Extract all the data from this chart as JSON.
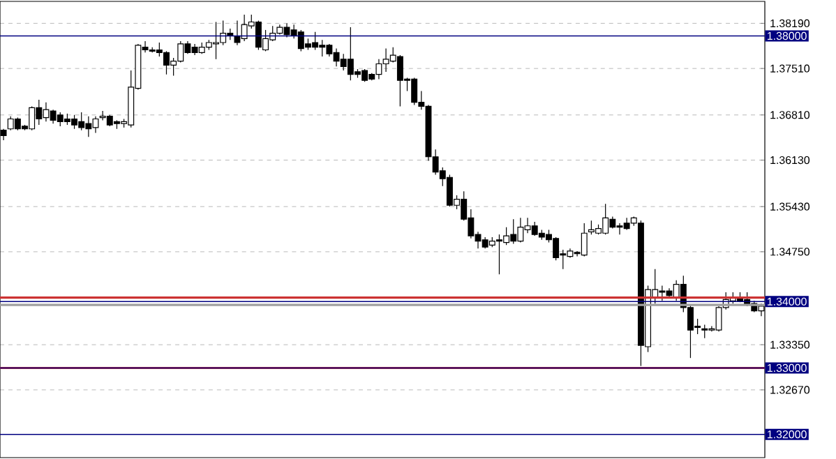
{
  "chart_data": {
    "type": "candlestick",
    "color": "#000000",
    "categories": [
      null,
      null,
      null,
      null,
      null,
      null,
      null,
      null,
      null,
      null,
      null,
      null,
      null,
      null,
      null,
      null,
      null,
      null,
      null,
      null,
      null,
      null,
      null,
      null,
      null,
      null,
      null,
      null,
      null,
      null,
      null,
      null,
      null,
      null,
      null,
      null,
      null,
      null,
      null,
      null,
      null,
      null,
      null,
      null,
      null,
      null,
      null,
      null,
      null,
      null,
      null,
      null,
      null,
      null,
      null,
      null,
      null,
      null,
      null,
      null,
      null,
      null,
      null,
      null,
      null,
      null,
      null,
      null,
      null,
      null,
      null,
      null,
      null,
      null,
      null,
      null,
      null,
      null,
      null,
      null,
      null,
      null,
      null,
      null,
      null,
      null,
      null,
      null,
      null,
      null,
      null,
      null,
      null,
      null,
      null,
      null,
      null,
      null,
      null,
      null,
      null,
      null,
      null,
      null,
      null,
      null,
      null,
      null
    ],
    "ohlc": [
      [
        1.3658,
        1.366,
        1.3643,
        1.365
      ],
      [
        1.366,
        1.3679,
        1.3658,
        1.3675
      ],
      [
        1.3675,
        1.3677,
        1.3658,
        1.366
      ],
      [
        1.3664,
        1.3666,
        1.3658,
        1.366
      ],
      [
        1.366,
        1.3694,
        1.3658,
        1.3692
      ],
      [
        1.3692,
        1.3704,
        1.3666,
        1.3675
      ],
      [
        1.3677,
        1.37,
        1.3671,
        1.3689
      ],
      [
        1.3687,
        1.3689,
        1.3668,
        1.3673
      ],
      [
        1.3681,
        1.3685,
        1.3664,
        1.3671
      ],
      [
        1.3675,
        1.3683,
        1.3666,
        1.3671
      ],
      [
        1.3675,
        1.3681,
        1.366,
        1.3666
      ],
      [
        1.3671,
        1.3685,
        1.3658,
        1.3662
      ],
      [
        1.3668,
        1.3679,
        1.3648,
        1.366
      ],
      [
        1.3662,
        1.3679,
        1.3654,
        1.3675
      ],
      [
        1.3677,
        1.3687,
        1.3673,
        1.3679
      ],
      [
        1.3679,
        1.3681,
        1.3664,
        1.3666
      ],
      [
        1.3671,
        1.3673,
        1.366,
        1.3668
      ],
      [
        1.3668,
        1.3675,
        1.3662,
        1.3671
      ],
      [
        1.3666,
        1.3748,
        1.3662,
        1.3723
      ],
      [
        1.3721,
        1.3788,
        1.3719,
        1.3786
      ],
      [
        1.3783,
        1.3792,
        1.3775,
        1.3779
      ],
      [
        1.3779,
        1.3783,
        1.3775,
        1.3777
      ],
      [
        1.3779,
        1.379,
        1.3769,
        1.3775
      ],
      [
        1.3775,
        1.3777,
        1.3742,
        1.3756
      ],
      [
        1.3756,
        1.3767,
        1.374,
        1.3762
      ],
      [
        1.3762,
        1.3792,
        1.376,
        1.3788
      ],
      [
        1.3788,
        1.3792,
        1.3773,
        1.3775
      ],
      [
        1.3783,
        1.3788,
        1.3771,
        1.3775
      ],
      [
        1.3775,
        1.379,
        1.3773,
        1.3783
      ],
      [
        1.3783,
        1.3794,
        1.3779,
        1.379
      ],
      [
        1.3788,
        1.3821,
        1.3765,
        1.379
      ],
      [
        1.379,
        1.3823,
        1.3786,
        1.3804
      ],
      [
        1.3804,
        1.3811,
        1.3794,
        1.38
      ],
      [
        1.38,
        1.3823,
        1.3786,
        1.379
      ],
      [
        1.3796,
        1.3832,
        1.3792,
        1.3817
      ],
      [
        1.3815,
        1.3832,
        1.3811,
        1.3821
      ],
      [
        1.3821,
        1.3823,
        1.3779,
        1.3783
      ],
      [
        1.3779,
        1.3809,
        1.3777,
        1.3796
      ],
      [
        1.3794,
        1.3815,
        1.3792,
        1.3804
      ],
      [
        1.3804,
        1.3817,
        1.3802,
        1.3813
      ],
      [
        1.3813,
        1.3819,
        1.3798,
        1.3802
      ],
      [
        1.3809,
        1.3817,
        1.3796,
        1.38
      ],
      [
        1.3806,
        1.3809,
        1.3777,
        1.3781
      ],
      [
        1.3788,
        1.3796,
        1.3779,
        1.3783
      ],
      [
        1.379,
        1.3806,
        1.3779,
        1.3783
      ],
      [
        1.3786,
        1.3794,
        1.3769,
        1.3783
      ],
      [
        1.3786,
        1.3788,
        1.3769,
        1.3773
      ],
      [
        1.3775,
        1.3781,
        1.3754,
        1.3762
      ],
      [
        1.3765,
        1.3773,
        1.3748,
        1.3754
      ],
      [
        1.3765,
        1.3813,
        1.3733,
        1.3742
      ],
      [
        1.3746,
        1.375,
        1.3737,
        1.3742
      ],
      [
        1.3748,
        1.375,
        1.3731,
        1.3733
      ],
      [
        1.3742,
        1.3744,
        1.3733,
        1.3735
      ],
      [
        1.3742,
        1.3765,
        1.3735,
        1.3758
      ],
      [
        1.3758,
        1.3781,
        1.3746,
        1.3765
      ],
      [
        1.3762,
        1.3783,
        1.376,
        1.3771
      ],
      [
        1.3769,
        1.3771,
        1.3694,
        1.3733
      ],
      [
        1.3735,
        1.3737,
        1.3717,
        1.3733
      ],
      [
        1.3735,
        1.3737,
        1.3696,
        1.37
      ],
      [
        1.37,
        1.3717,
        1.3689,
        1.3694
      ],
      [
        1.3694,
        1.3696,
        1.3612,
        1.3618
      ],
      [
        1.3618,
        1.3629,
        1.3591,
        1.3595
      ],
      [
        1.3597,
        1.3602,
        1.3574,
        1.3585
      ],
      [
        1.3587,
        1.3591,
        1.3543,
        1.3545
      ],
      [
        1.3545,
        1.356,
        1.3539,
        1.3554
      ],
      [
        1.3554,
        1.3566,
        1.3522,
        1.3524
      ],
      [
        1.3526,
        1.3539,
        1.3495,
        1.3499
      ],
      [
        1.3501,
        1.3505,
        1.348,
        1.3491
      ],
      [
        1.3493,
        1.3497,
        1.348,
        1.3482
      ],
      [
        1.3485,
        1.3497,
        1.3482,
        1.3491
      ],
      [
        1.3493,
        1.3501,
        1.3441,
        1.3491
      ],
      [
        1.3489,
        1.3512,
        1.3485,
        1.3499
      ],
      [
        1.3501,
        1.3524,
        1.3487,
        1.3491
      ],
      [
        1.3491,
        1.3526,
        1.3489,
        1.3512
      ],
      [
        1.3508,
        1.3526,
        1.3503,
        1.3514
      ],
      [
        1.3514,
        1.352,
        1.3499,
        1.3501
      ],
      [
        1.3503,
        1.3508,
        1.3493,
        1.3497
      ],
      [
        1.3501,
        1.3508,
        1.3489,
        1.3493
      ],
      [
        1.3495,
        1.3497,
        1.3462,
        1.3466
      ],
      [
        1.3472,
        1.3478,
        1.3449,
        1.347
      ],
      [
        1.3468,
        1.348,
        1.3466,
        1.3476
      ],
      [
        1.3474,
        1.3476,
        1.3468,
        1.3472
      ],
      [
        1.347,
        1.3518,
        1.3468,
        1.3503
      ],
      [
        1.3505,
        1.3522,
        1.3501,
        1.3508
      ],
      [
        1.3503,
        1.3516,
        1.3501,
        1.351
      ],
      [
        1.3503,
        1.3547,
        1.3501,
        1.3526
      ],
      [
        1.3524,
        1.3528,
        1.351,
        1.3512
      ],
      [
        1.3514,
        1.3518,
        1.3501,
        1.3512
      ],
      [
        1.3518,
        1.3526,
        1.3508,
        1.351
      ],
      [
        1.3518,
        1.3528,
        1.3514,
        1.3526
      ],
      [
        1.3518,
        1.3522,
        1.3303,
        1.3334
      ],
      [
        1.3332,
        1.3424,
        1.3324,
        1.3418
      ],
      [
        1.3407,
        1.3449,
        1.3397,
        1.3418
      ],
      [
        1.3416,
        1.3424,
        1.3401,
        1.3414
      ],
      [
        1.3416,
        1.342,
        1.3405,
        1.3409
      ],
      [
        1.3407,
        1.3432,
        1.3401,
        1.3426
      ],
      [
        1.3426,
        1.3439,
        1.3384,
        1.3391
      ],
      [
        1.3391,
        1.3395,
        1.3315,
        1.3357
      ],
      [
        1.3363,
        1.3374,
        1.3351,
        1.3361
      ],
      [
        1.3359,
        1.3365,
        1.3345,
        1.3357
      ],
      [
        1.3357,
        1.3363,
        1.3355,
        1.3359
      ],
      [
        1.3357,
        1.3393,
        1.3355,
        1.3391
      ],
      [
        1.3391,
        1.3414,
        1.3388,
        1.3403
      ],
      [
        1.3401,
        1.3414,
        1.3397,
        1.3405
      ],
      [
        1.3405,
        1.3414,
        1.3399,
        1.3401
      ],
      [
        1.3403,
        1.3414,
        1.3393,
        1.3395
      ],
      [
        1.3397,
        1.3401,
        1.3384,
        1.3386
      ],
      [
        1.3386,
        1.3397,
        1.3378,
        1.3393
      ]
    ],
    "ylim": [
      1.3165,
      1.3852
    ],
    "yticks": [
      {
        "value": 1.3819,
        "label": "1.38190"
      },
      {
        "value": 1.3751,
        "label": "1.37510"
      },
      {
        "value": 1.3681,
        "label": "1.36810"
      },
      {
        "value": 1.3613,
        "label": "1.36130"
      },
      {
        "value": 1.3543,
        "label": "1.35430"
      },
      {
        "value": 1.3475,
        "label": "1.34750"
      },
      {
        "value": 1.3335,
        "label": "1.33350"
      },
      {
        "value": 1.3267,
        "label": "1.32670"
      }
    ],
    "ref_lines": [
      {
        "axis": "y",
        "value": 1.38,
        "label": "1.38000",
        "color": "#000080"
      },
      {
        "axis": "y",
        "value": 1.34,
        "label": "1.34000",
        "color": "#000080"
      },
      {
        "axis": "y",
        "value": 1.33,
        "label": "1.33000",
        "color": "#000080"
      },
      {
        "axis": "y",
        "value": 1.32,
        "label": "1.32000",
        "color": "#000080"
      },
      {
        "axis": "y",
        "value": 1.3395,
        "color": "#a0a0a0"
      },
      {
        "axis": "y",
        "value": 1.3406,
        "color": "#cc3333"
      },
      {
        "axis": "y",
        "value": 1.33,
        "color": "#cc3333"
      }
    ],
    "grid": "y",
    "tick_labels": "y"
  }
}
